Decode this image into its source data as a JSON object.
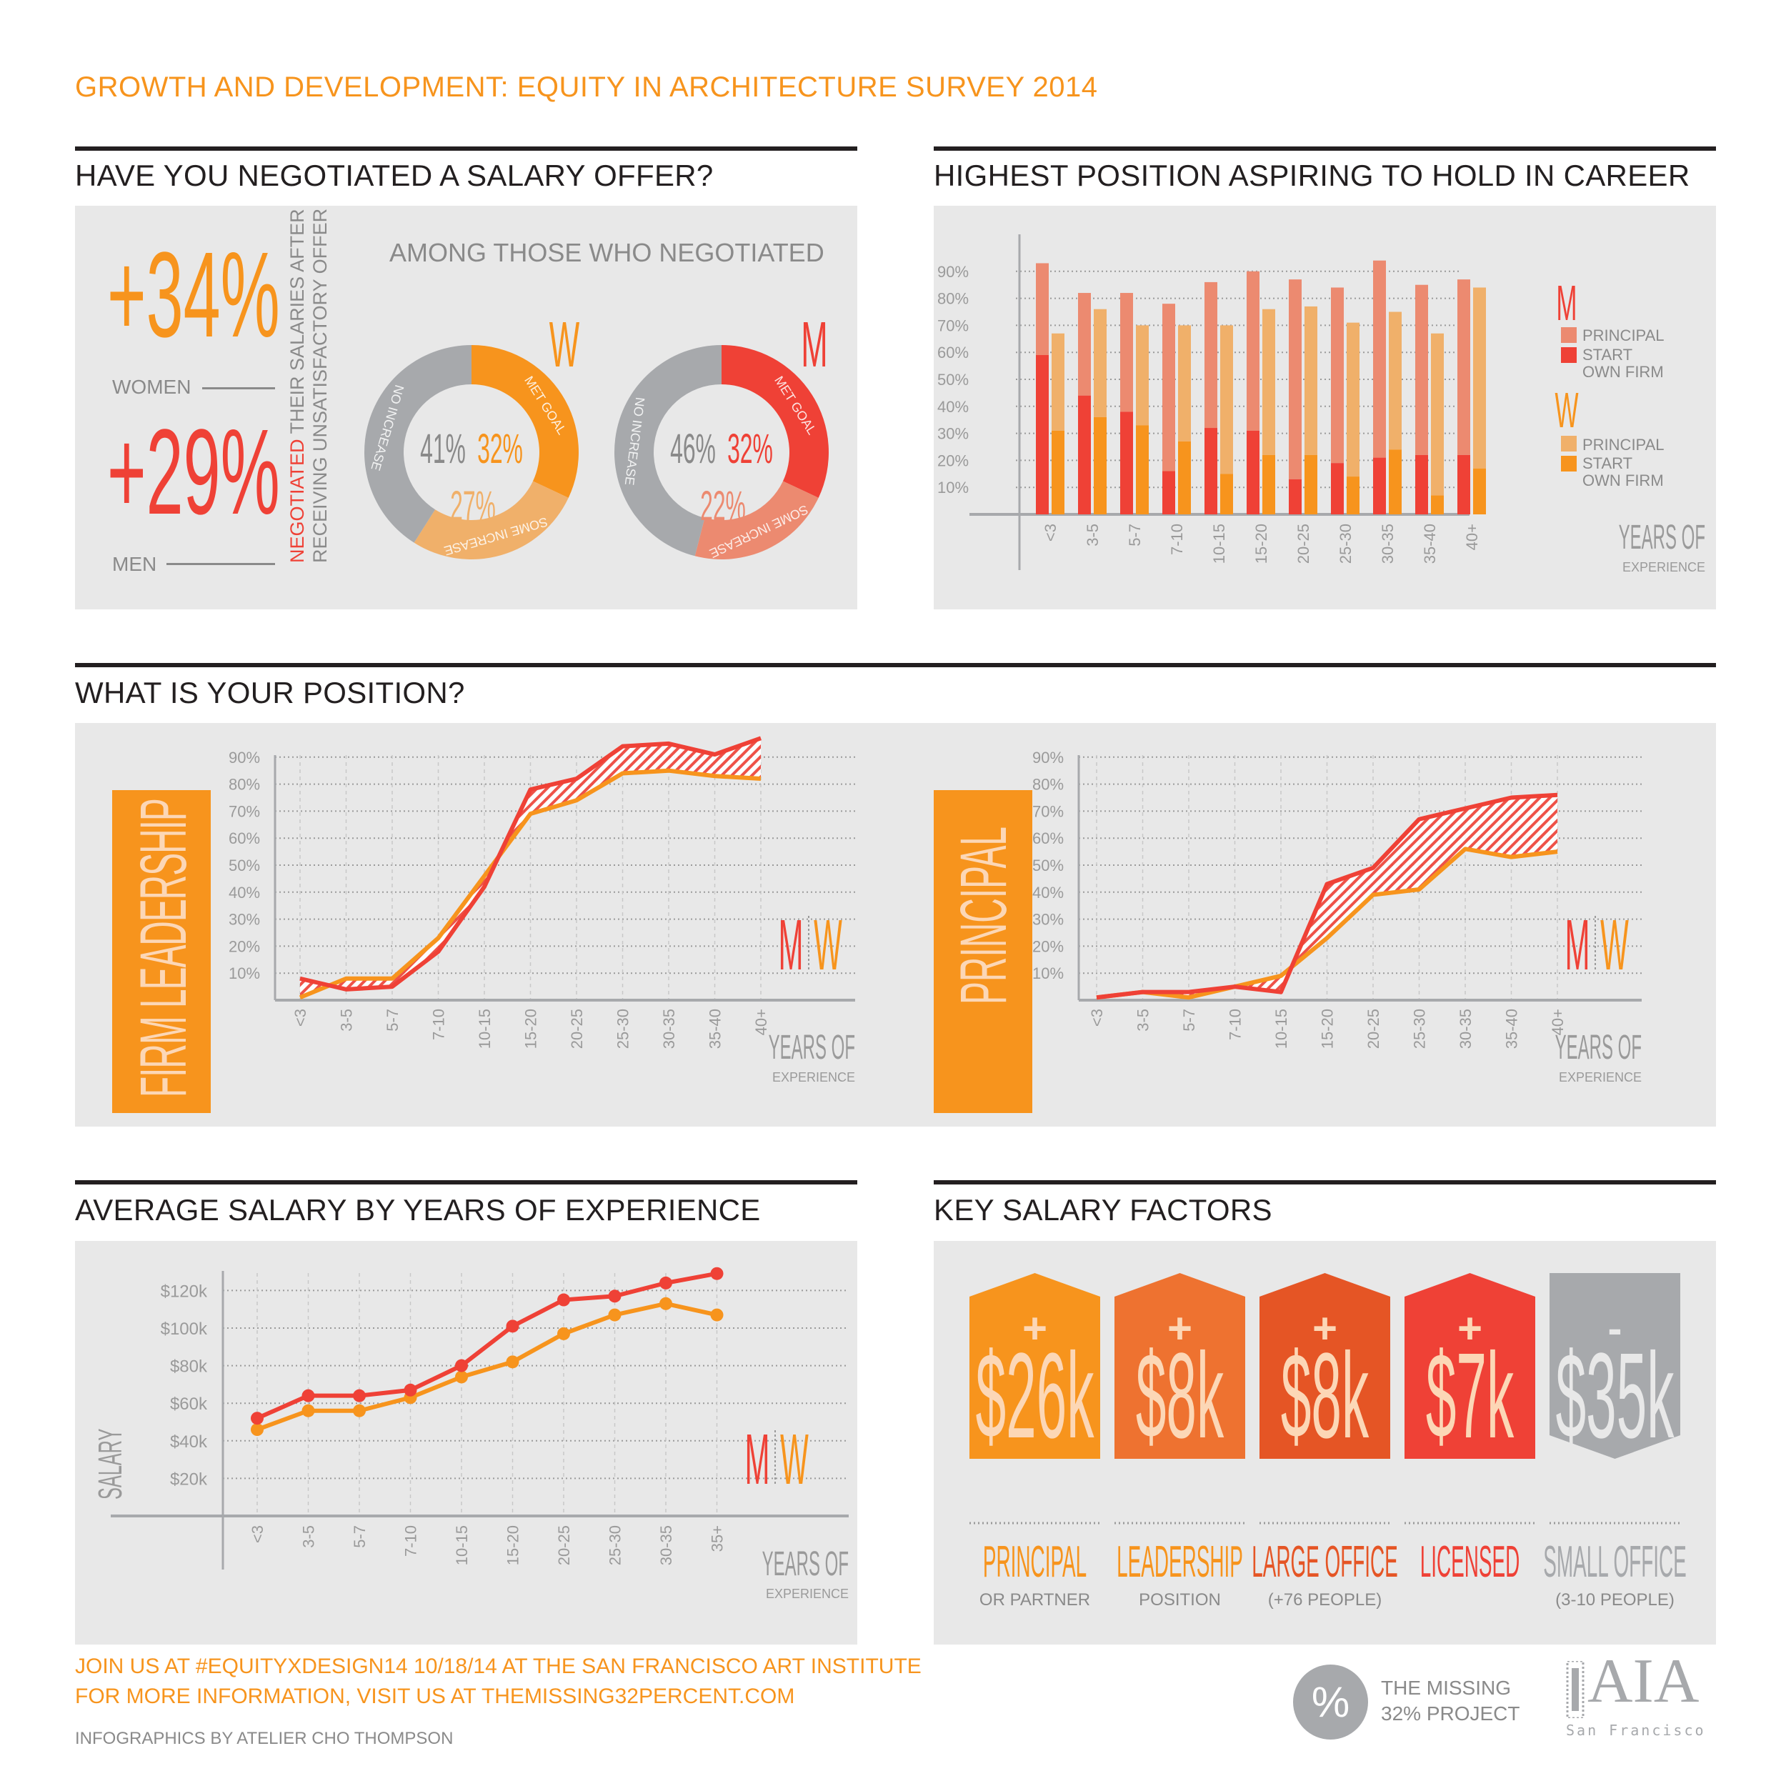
{
  "header": {
    "title": "GROWTH AND DEVELOPMENT: EQUITY IN ARCHITECTURE SURVEY 2014"
  },
  "colors": {
    "orange": "#f7941d",
    "red": "#ef4136",
    "light_orange": "#f0b06a",
    "salmon": "#ec8a70",
    "gray": "#a7a9ac",
    "panel": "#e8e8e8",
    "cream": "#fcd7b6"
  },
  "negotiation": {
    "section_title": "HAVE YOU NEGOTIATED A SALARY OFFER?",
    "women_pct": "+34%",
    "women_label": "WOMEN",
    "men_pct": "+29%",
    "men_label": "MEN",
    "caption_line1_highlight": "NEGOTIATED",
    "caption_line1_rest": " THEIR SALARIES AFTER",
    "caption_line2": "RECEIVING UNSATISFACTORY OFFER",
    "among_title": "AMONG THOSE WHO NEGOTIATED"
  },
  "chart_data": [
    {
      "id": "negotiation-outcomes",
      "type": "pie",
      "title": "AMONG THOSE WHO NEGOTIATED",
      "series": [
        {
          "name": "W",
          "slices": [
            {
              "label": "MET GOAL",
              "value": 32,
              "text": "32%"
            },
            {
              "label": "SOME INCREASE",
              "value": 27,
              "text": "27%"
            },
            {
              "label": "NO INCREASE",
              "value": 41,
              "text": "41%"
            }
          ]
        },
        {
          "name": "M",
          "slices": [
            {
              "label": "MET GOAL",
              "value": 32,
              "text": "32%"
            },
            {
              "label": "SOME INCREASE",
              "value": 22,
              "text": "22%"
            },
            {
              "label": "NO INCREASE",
              "value": 46,
              "text": "46%"
            }
          ]
        }
      ]
    },
    {
      "id": "aspiration",
      "type": "bar",
      "title": "HIGHEST POSITION ASPIRING TO HOLD IN CAREER",
      "categories": [
        "<3",
        "3-5",
        "5-7",
        "7-10",
        "10-15",
        "15-20",
        "20-25",
        "25-30",
        "30-35",
        "35-40",
        "40+"
      ],
      "yticks": [
        "10%",
        "20%",
        "30%",
        "40%",
        "50%",
        "60%",
        "70%",
        "80%",
        "90%"
      ],
      "ylim": [
        0,
        100
      ],
      "xlabel_main": "YEARS OF",
      "xlabel_sub": "EXPERIENCE",
      "legend": {
        "m_title": "M",
        "w_title": "W",
        "principal": "PRINCIPAL",
        "start1": "START",
        "start2": "OWN FIRM"
      },
      "series": [
        {
          "name": "M Principal",
          "values": [
            93,
            82,
            82,
            78,
            86,
            90,
            87,
            84,
            94,
            85,
            87
          ]
        },
        {
          "name": "M Start Own Firm",
          "values": [
            59,
            44,
            38,
            16,
            32,
            31,
            13,
            19,
            21,
            22,
            22
          ]
        },
        {
          "name": "W Principal",
          "values": [
            67,
            76,
            70,
            70,
            70,
            76,
            77,
            71,
            75,
            67,
            84
          ]
        },
        {
          "name": "W Start Own Firm",
          "values": [
            31,
            36,
            33,
            27,
            15,
            22,
            22,
            14,
            24,
            7,
            17
          ]
        }
      ]
    },
    {
      "id": "firm-leadership",
      "type": "line",
      "title": "FIRM LEADERSHIP",
      "categories": [
        "<3",
        "3-5",
        "5-7",
        "7-10",
        "10-15",
        "15-20",
        "20-25",
        "25-30",
        "30-35",
        "35-40",
        "40+"
      ],
      "yticks": [
        "10%",
        "20%",
        "30%",
        "40%",
        "50%",
        "60%",
        "70%",
        "80%",
        "90%"
      ],
      "ylim": [
        0,
        100
      ],
      "xlabel_main": "YEARS OF",
      "xlabel_sub": "EXPERIENCE",
      "series": [
        {
          "name": "M",
          "values": [
            8,
            4,
            5,
            18,
            42,
            78,
            82,
            94,
            95,
            91,
            97
          ]
        },
        {
          "name": "W",
          "values": [
            1,
            8,
            8,
            23,
            46,
            69,
            74,
            84,
            85,
            83,
            82
          ]
        }
      ]
    },
    {
      "id": "principal",
      "type": "line",
      "title": "PRINCIPAL",
      "categories": [
        "<3",
        "3-5",
        "5-7",
        "7-10",
        "10-15",
        "15-20",
        "20-25",
        "25-30",
        "30-35",
        "35-40",
        "40+"
      ],
      "yticks": [
        "10%",
        "20%",
        "30%",
        "40%",
        "50%",
        "60%",
        "70%",
        "80%",
        "90%"
      ],
      "ylim": [
        0,
        100
      ],
      "xlabel_main": "YEARS OF",
      "xlabel_sub": "EXPERIENCE",
      "series": [
        {
          "name": "M",
          "values": [
            1,
            3,
            3,
            5,
            3,
            43,
            49,
            67,
            71,
            75,
            76
          ]
        },
        {
          "name": "W",
          "values": [
            1,
            3,
            1,
            5,
            9,
            23,
            39,
            41,
            56,
            53,
            55
          ]
        }
      ]
    },
    {
      "id": "salary",
      "type": "line",
      "title": "AVERAGE SALARY BY YEARS OF EXPERIENCE",
      "categories": [
        "<3",
        "3-5",
        "5-7",
        "7-10",
        "10-15",
        "15-20",
        "20-25",
        "25-30",
        "30-35",
        "35+"
      ],
      "yticks": [
        "$20k",
        "$40k",
        "$60k",
        "$80k",
        "$100k",
        "$120k"
      ],
      "ylabel": "SALARY",
      "ylim": [
        0,
        140
      ],
      "xlabel_main": "YEARS OF",
      "xlabel_sub": "EXPERIENCE",
      "series": [
        {
          "name": "M",
          "values": [
            52,
            64,
            64,
            67,
            80,
            101,
            115,
            117,
            124,
            129
          ]
        },
        {
          "name": "W",
          "values": [
            46,
            56,
            56,
            63,
            74,
            82,
            97,
            107,
            113,
            107
          ]
        }
      ]
    }
  ],
  "position": {
    "section_title": "WHAT IS YOUR POSITION?",
    "fl_label": "FIRM LEADERSHIP",
    "pr_label": "PRINCIPAL",
    "m": "M",
    "w": "W"
  },
  "aspiration": {
    "section_title": "HIGHEST POSITION ASPIRING TO HOLD IN CAREER"
  },
  "salary": {
    "section_title": "AVERAGE SALARY BY YEARS OF EXPERIENCE",
    "m": "M",
    "w": "W"
  },
  "factors": {
    "section_title": "KEY SALARY FACTORS",
    "items": [
      {
        "sign": "+",
        "amount": "$26k",
        "title": "PRINCIPAL",
        "sub": "OR PARTNER",
        "color": "#f7941d",
        "title_color": "#f7941d"
      },
      {
        "sign": "+",
        "amount": "$8k",
        "title": "LEADERSHIP",
        "sub": "POSITION",
        "color": "#ee7230",
        "title_color": "#f7941d"
      },
      {
        "sign": "+",
        "amount": "$8k",
        "title": "LARGE OFFICE",
        "sub": "(+76 PEOPLE)",
        "color": "#e55525",
        "title_color": "#e55525"
      },
      {
        "sign": "+",
        "amount": "$7k",
        "title": "LICENSED",
        "sub": "",
        "color": "#ef4136",
        "title_color": "#ef4136"
      },
      {
        "sign": "-",
        "amount": "$35k",
        "title": "SMALL OFFICE",
        "sub": "(3-10 PEOPLE)",
        "color": "#a7a9ac",
        "title_color": "#a7a9ac"
      }
    ]
  },
  "footer": {
    "line1": "JOIN US AT #EQUITYXDESIGN14 10/18/14 AT THE SAN FRANCISCO ART INSTITUTE",
    "line2": "FOR MORE INFORMATION, VISIT US AT THEMISSING32PERCENT.COM",
    "credit": "INFOGRAPHICS BY ATELIER CHO THOMPSON",
    "logo1_symbol": "%",
    "logo1_line1": "THE MISSING",
    "logo1_line2": "32% PROJECT",
    "logo2_main": "AIA",
    "logo2_sub": "San Francisco"
  }
}
